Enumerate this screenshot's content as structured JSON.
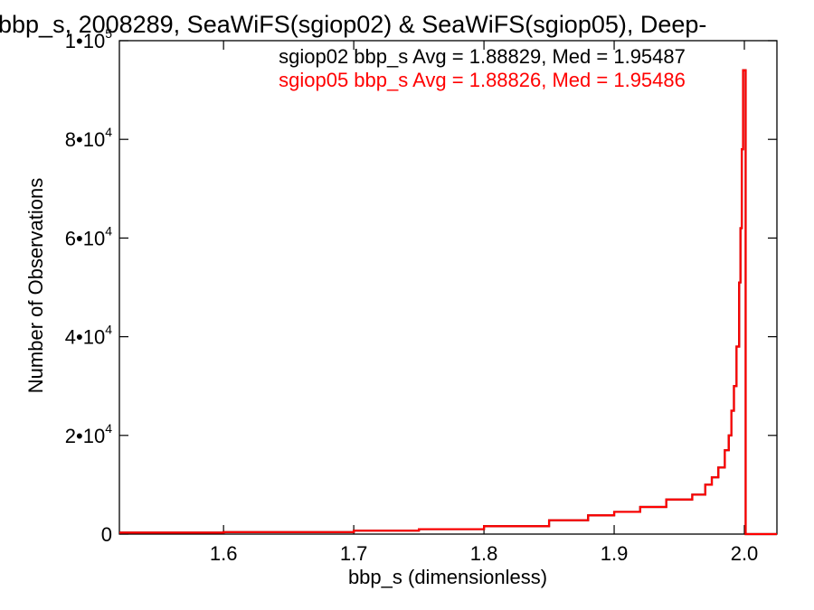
{
  "chart_data": {
    "type": "line",
    "title": "bbp_s, 2008289, SeaWiFS(sgiop02) & SeaWiFS(sgiop05), Deep-",
    "xlabel": "bbp_s (dimensionless)",
    "ylabel": "Number of Observations",
    "xlim": [
      1.52,
      2.025
    ],
    "ylim": [
      0,
      100000
    ],
    "grid": false,
    "x_ticks": [
      {
        "value": 1.6,
        "label": "1.6"
      },
      {
        "value": 1.7,
        "label": "1.7"
      },
      {
        "value": 1.8,
        "label": "1.8"
      },
      {
        "value": 1.9,
        "label": "1.9"
      },
      {
        "value": 2.0,
        "label": "2.0"
      }
    ],
    "y_ticks": [
      {
        "value": 0,
        "base": "0",
        "exp": ""
      },
      {
        "value": 20000,
        "base": "2•10",
        "exp": "4"
      },
      {
        "value": 40000,
        "base": "4•10",
        "exp": "4"
      },
      {
        "value": 60000,
        "base": "6•10",
        "exp": "4"
      },
      {
        "value": 80000,
        "base": "8•10",
        "exp": "4"
      },
      {
        "value": 100000,
        "base": "1•10",
        "exp": "5"
      }
    ],
    "annotations": [
      {
        "text": "sgiop02 bbp_s Avg = 1.88829, Med = 1.95487",
        "color": "#000000"
      },
      {
        "text": "sgiop05 bbp_s Avg = 1.88826, Med = 1.95486",
        "color": "#ff0000"
      }
    ],
    "series": [
      {
        "color": "#000000",
        "x": [
          1.52,
          1.6,
          1.7,
          1.75,
          1.8,
          1.85,
          1.88,
          1.9,
          1.92,
          1.94,
          1.96,
          1.97,
          1.975,
          1.98,
          1.985,
          1.988,
          1.99,
          1.992,
          1.994,
          1.996,
          1.997,
          1.998,
          1.999,
          2.0,
          2.001,
          2.002,
          2.003,
          2.025
        ],
        "y": [
          300,
          400,
          700,
          1000,
          1600,
          2800,
          3800,
          4500,
          5500,
          7000,
          8000,
          10000,
          11500,
          13500,
          17000,
          20000,
          25000,
          30000,
          38000,
          51000,
          62000,
          78000,
          94000,
          94000,
          0,
          0,
          0,
          0
        ]
      },
      {
        "color": "#ff0000",
        "x": [
          1.52,
          1.6,
          1.7,
          1.75,
          1.8,
          1.85,
          1.88,
          1.9,
          1.92,
          1.94,
          1.96,
          1.97,
          1.975,
          1.98,
          1.985,
          1.988,
          1.99,
          1.992,
          1.994,
          1.996,
          1.997,
          1.998,
          1.999,
          2.0,
          2.001,
          2.002,
          2.003,
          2.025
        ],
        "y": [
          300,
          400,
          700,
          1000,
          1600,
          2800,
          3800,
          4500,
          5500,
          7000,
          8000,
          10000,
          11500,
          13500,
          17000,
          20000,
          25000,
          30000,
          38000,
          51000,
          62000,
          78000,
          94000,
          94000,
          0,
          0,
          0,
          0
        ]
      }
    ]
  }
}
